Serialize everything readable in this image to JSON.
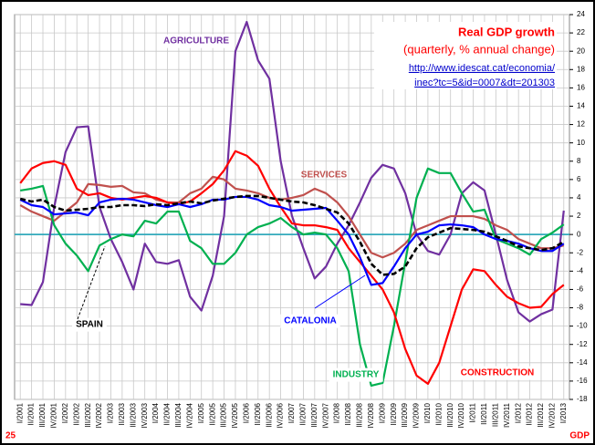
{
  "chart_data": {
    "type": "line",
    "title": "Real GDP growth",
    "subtitle": "(quarterly, % annual change)",
    "source_lines": [
      "http://www.idescat.cat/economia/",
      "inec?tc=5&id=0007&dt=201303"
    ],
    "corner_left": "25",
    "corner_right": "GDP",
    "categories": [
      "I/2001",
      "II/2001",
      "III/2001",
      "IV/2001",
      "I/2002",
      "II/2002",
      "III/2002",
      "IV/2002",
      "I/2003",
      "II/2003",
      "III/2003",
      "IV/2003",
      "I/2004",
      "II/2004",
      "III/2004",
      "IV/2004",
      "I/2005",
      "II/2005",
      "III/2005",
      "IV/2005",
      "I/2006",
      "II/2006",
      "III/2006",
      "IV/2006",
      "I/2007",
      "II/2007",
      "III/2007",
      "IV/2007",
      "I/2008",
      "II/2008",
      "III/2008",
      "IV/2008",
      "I/2009",
      "II/2009",
      "III/2009",
      "IV/2009",
      "I/2010",
      "II/2010",
      "III/2010",
      "IV/2010",
      "I/2011",
      "II/2011",
      "III/2011",
      "IV/2011",
      "I/2012",
      "II/2012",
      "III/2012",
      "IV/2012",
      "I/2013"
    ],
    "series": [
      {
        "name": "AGRICULTURE",
        "color": "#7030a0",
        "values": [
          -7.6,
          -7.7,
          -5.2,
          3,
          9,
          11.7,
          11.8,
          3,
          -0.5,
          -3,
          -6,
          -1,
          -3,
          -3.2,
          -2.8,
          -6.8,
          -8.3,
          -4.5,
          2,
          20,
          23.2,
          19,
          17,
          8,
          2,
          -1.5,
          -4.8,
          -3.5,
          -1,
          1,
          3.5,
          6.2,
          7.6,
          7.2,
          4.5,
          0,
          -1.8,
          -2.2,
          0,
          4.5,
          5.7,
          4.8,
          0,
          -5,
          -8.5,
          -9.5,
          -8.7,
          -8.2,
          2.6
        ]
      },
      {
        "name": "SERVICES",
        "color": "#c0504d",
        "values": [
          3.2,
          2.5,
          2,
          1.5,
          2.5,
          3.5,
          5.5,
          5.4,
          5.2,
          5.3,
          4.6,
          4.5,
          3.8,
          3.5,
          3.5,
          4.5,
          5,
          6.3,
          6,
          5,
          4.8,
          4.5,
          4,
          3.8,
          4,
          4.3,
          5,
          4.5,
          3.5,
          2,
          0,
          -2,
          -2.5,
          -2,
          -1,
          0.5,
          1,
          1.5,
          2,
          2,
          2,
          1.7,
          1,
          0.5,
          -0.5,
          -1,
          -1.5,
          -1.5,
          -1.2
        ]
      },
      {
        "name": "INDUSTRY",
        "color": "#00b050",
        "values": [
          4.8,
          5,
          5.3,
          1,
          -1,
          -2.3,
          -4,
          -1.2,
          -0.5,
          0,
          -0.2,
          1.5,
          1.2,
          2.5,
          2.5,
          -0.7,
          -1.5,
          -3.2,
          -3.2,
          -2,
          0,
          0.8,
          1.2,
          1.8,
          0.8,
          0,
          0.2,
          0,
          -1.5,
          -4,
          -12,
          -16.5,
          -16.2,
          -10,
          -3,
          4,
          7.2,
          6.7,
          6.7,
          4.5,
          2.5,
          2.7,
          -0.5,
          -1,
          -1.5,
          -2.2,
          -0.5,
          0.2,
          1.1
        ]
      },
      {
        "name": "CONSTRUCTION",
        "color": "#ff0000",
        "values": [
          5.6,
          7.2,
          7.8,
          8,
          7.6,
          5,
          4.3,
          4.5,
          4,
          3.8,
          4,
          4.2,
          4,
          3.5,
          3.3,
          3.6,
          4.5,
          5.5,
          7,
          9.1,
          8.6,
          7.5,
          5,
          3,
          1.2,
          1,
          1,
          0.8,
          0.5,
          -1.5,
          -3,
          -4.5,
          -6,
          -8.5,
          -12.5,
          -15.4,
          -16.3,
          -14,
          -10,
          -6,
          -3.8,
          -4,
          -5.5,
          -6.8,
          -7.5,
          -8,
          -7.9,
          -6.5,
          -5.5
        ]
      },
      {
        "name": "CATALONIA",
        "color": "#0000ff",
        "values": [
          3.8,
          3.2,
          3,
          2.2,
          2.3,
          2.4,
          2.1,
          3.5,
          3.8,
          3.9,
          3.8,
          3.5,
          3.2,
          3,
          3.3,
          3,
          3.3,
          3.8,
          3.8,
          4.1,
          4.1,
          3.8,
          3.2,
          3,
          2.6,
          2.7,
          2.8,
          2.9,
          1.5,
          0,
          -2.5,
          -5.5,
          -5.3,
          -3.5,
          -1.5,
          0,
          0.3,
          1,
          1.1,
          1,
          0.8,
          0,
          -0.5,
          -0.7,
          -1,
          -1.5,
          -1.8,
          -1.8,
          -1
        ]
      },
      {
        "name": "SPAIN",
        "color": "#000000",
        "dashed": true,
        "values": [
          3.9,
          3.6,
          3.8,
          3,
          2.6,
          2.7,
          2.8,
          3,
          3,
          3.2,
          3.2,
          3.1,
          3.3,
          3.2,
          3.4,
          3.6,
          3.4,
          3.7,
          3.9,
          4.1,
          4.2,
          4.2,
          4,
          3.8,
          3.6,
          3.5,
          3.2,
          2.8,
          2.4,
          1.2,
          -0.8,
          -3.2,
          -4.4,
          -4.3,
          -3.5,
          -1.5,
          -0.3,
          0.2,
          0.7,
          0.6,
          0.5,
          0.3,
          -0.2,
          -0.7,
          -1.3,
          -1.5,
          -1.7,
          -1.5,
          -0.8
        ]
      }
    ],
    "zero_line_color": "#33aabb",
    "ylim": [
      -18,
      24
    ],
    "yticks": [
      -18,
      -16,
      -14,
      -12,
      -10,
      -8,
      -6,
      -4,
      -2,
      0,
      2,
      4,
      6,
      8,
      10,
      12,
      14,
      16,
      18,
      20,
      22,
      24
    ],
    "grid": true
  }
}
